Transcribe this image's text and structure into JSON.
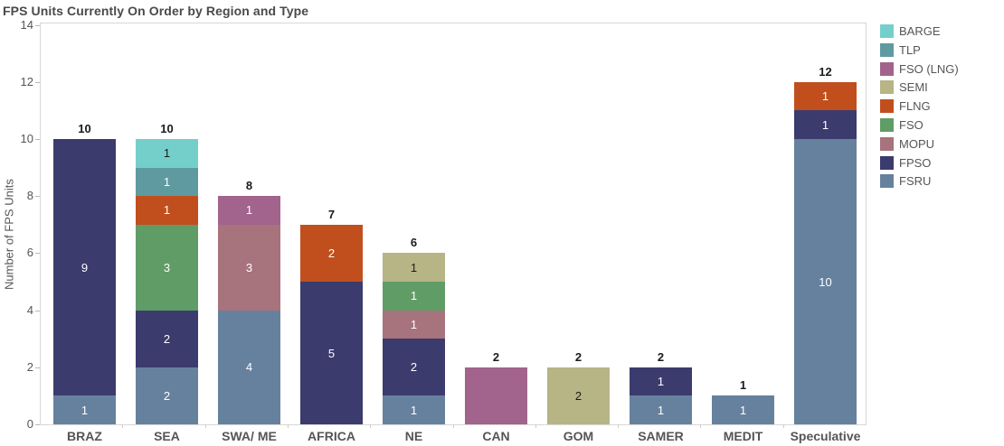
{
  "chart_data": {
    "type": "bar",
    "stacked": true,
    "title": "FPS Units Currently On Order by Region and Type",
    "xlabel": "",
    "ylabel": "Number of FPS Units",
    "ylim": [
      0,
      14
    ],
    "yticks": [
      0,
      2,
      4,
      6,
      8,
      10,
      12,
      14
    ],
    "grid": false,
    "legend_position": "top-right",
    "categories": [
      "BRAZ",
      "SEA",
      "SWA/ ME",
      "AFRICA",
      "NE",
      "CAN",
      "GOM",
      "SAMER",
      "MEDIT",
      "Speculative"
    ],
    "legend": [
      "BARGE",
      "TLP",
      "FSO (LNG)",
      "SEMI",
      "FLNG",
      "FSO",
      "MOPU",
      "FPSO",
      "FSRU"
    ],
    "series_colors": {
      "BARGE": "#74CFCB",
      "TLP": "#5F9AA1",
      "FSO (LNG)": "#A2638C",
      "SEMI": "#B7B485",
      "FLNG": "#C14F1E",
      "FSO": "#609C66",
      "MOPU": "#A7737C",
      "FPSO": "#3B3B6E",
      "FSRU": "#66819E"
    },
    "dark_label_series": [
      "BARGE",
      "SEMI"
    ],
    "label_colors": {
      "light": "#ffffff",
      "dark": "#1a1a1a"
    },
    "bars": [
      {
        "category": "BRAZ",
        "total": 10,
        "segments": [
          {
            "series": "FSRU",
            "value": 1
          },
          {
            "series": "FPSO",
            "value": 9
          }
        ]
      },
      {
        "category": "SEA",
        "total": 10,
        "segments": [
          {
            "series": "FSRU",
            "value": 2
          },
          {
            "series": "FPSO",
            "value": 2
          },
          {
            "series": "FSO",
            "value": 3
          },
          {
            "series": "FLNG",
            "value": 1
          },
          {
            "series": "TLP",
            "value": 1
          },
          {
            "series": "BARGE",
            "value": 1
          }
        ]
      },
      {
        "category": "SWA/ ME",
        "total": 8,
        "segments": [
          {
            "series": "FSRU",
            "value": 4
          },
          {
            "series": "MOPU",
            "value": 3
          },
          {
            "series": "FSO (LNG)",
            "value": 1
          }
        ]
      },
      {
        "category": "AFRICA",
        "total": 7,
        "segments": [
          {
            "series": "FPSO",
            "value": 5
          },
          {
            "series": "FLNG",
            "value": 2
          }
        ]
      },
      {
        "category": "NE",
        "total": 6,
        "segments": [
          {
            "series": "FSRU",
            "value": 1
          },
          {
            "series": "FPSO",
            "value": 2
          },
          {
            "series": "MOPU",
            "value": 1
          },
          {
            "series": "FSO",
            "value": 1
          },
          {
            "series": "SEMI",
            "value": 1
          }
        ]
      },
      {
        "category": "CAN",
        "total": 2,
        "segments": [
          {
            "series": "FSO (LNG)",
            "value": 2,
            "show_label": false
          }
        ]
      },
      {
        "category": "GOM",
        "total": 2,
        "segments": [
          {
            "series": "SEMI",
            "value": 2
          }
        ]
      },
      {
        "category": "SAMER",
        "total": 2,
        "segments": [
          {
            "series": "FSRU",
            "value": 1
          },
          {
            "series": "FPSO",
            "value": 1
          }
        ]
      },
      {
        "category": "MEDIT",
        "total": 1,
        "segments": [
          {
            "series": "FSRU",
            "value": 1
          }
        ]
      },
      {
        "category": "Speculative",
        "total": 12,
        "segments": [
          {
            "series": "FSRU",
            "value": 10
          },
          {
            "series": "FPSO",
            "value": 1
          },
          {
            "series": "FLNG",
            "value": 1
          }
        ]
      }
    ]
  }
}
